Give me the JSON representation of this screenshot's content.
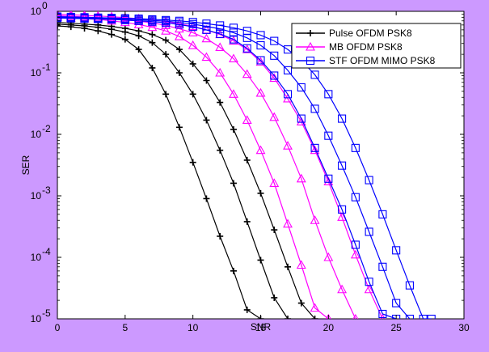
{
  "chart_data": {
    "type": "line",
    "xlabel": "SNR",
    "ylabel": "SER",
    "xlim": [
      0,
      30
    ],
    "ylim": [
      1e-05,
      1
    ],
    "yscale": "log",
    "grid": false,
    "legend_position": "top-right",
    "x_ticks": [
      0,
      5,
      10,
      15,
      20,
      25,
      30
    ],
    "y_ticks": [
      {
        "value": 1e-05,
        "base": "10",
        "exp": "-5"
      },
      {
        "value": 0.0001,
        "base": "10",
        "exp": "-4"
      },
      {
        "value": 0.001,
        "base": "10",
        "exp": "-3"
      },
      {
        "value": 0.01,
        "base": "10",
        "exp": "-2"
      },
      {
        "value": 0.1,
        "base": "10",
        "exp": "-1"
      },
      {
        "value": 1,
        "base": "10",
        "exp": "0"
      }
    ],
    "legend": [
      {
        "label": "Pulse OFDM PSK8",
        "color": "#000000",
        "marker": "plus"
      },
      {
        "label": "MB OFDM PSK8",
        "color": "#ff00ff",
        "marker": "triangle"
      },
      {
        "label": "STF OFDM MIMO PSK8",
        "color": "#0000ff",
        "marker": "square"
      }
    ],
    "series": [
      {
        "color": "#000000",
        "marker": "plus",
        "x": [
          0,
          1,
          2,
          3,
          4,
          5,
          6,
          7,
          8,
          9,
          10,
          11,
          12,
          13,
          14,
          15
        ],
        "y": [
          0.58,
          0.56,
          0.53,
          0.48,
          0.42,
          0.35,
          0.24,
          0.12,
          0.045,
          0.013,
          0.0035,
          0.0009,
          0.00022,
          6e-05,
          1.4e-05,
          1e-05
        ]
      },
      {
        "color": "#000000",
        "marker": "plus",
        "x": [
          0,
          1,
          2,
          3,
          4,
          5,
          6,
          7,
          8,
          9,
          10,
          11,
          12,
          13,
          14,
          15,
          16,
          17
        ],
        "y": [
          0.62,
          0.6,
          0.58,
          0.55,
          0.51,
          0.46,
          0.4,
          0.31,
          0.2,
          0.1,
          0.045,
          0.017,
          0.0055,
          0.0016,
          0.00038,
          9e-05,
          2.2e-05,
          1e-05
        ]
      },
      {
        "color": "#000000",
        "marker": "plus",
        "x": [
          0,
          1,
          2,
          3,
          4,
          5,
          6,
          7,
          8,
          9,
          10,
          11,
          12,
          13,
          14,
          15,
          16,
          17,
          18,
          19
        ],
        "y": [
          0.66,
          0.64,
          0.62,
          0.6,
          0.57,
          0.53,
          0.48,
          0.42,
          0.34,
          0.24,
          0.14,
          0.075,
          0.033,
          0.012,
          0.0038,
          0.0011,
          0.00028,
          7e-05,
          1.8e-05,
          1e-05
        ]
      },
      {
        "color": "#ff00ff",
        "marker": "triangle",
        "x": [
          0,
          1,
          2,
          3,
          4,
          5,
          6,
          7,
          8,
          9,
          10,
          11,
          12,
          13,
          14,
          15,
          16,
          17,
          18,
          19,
          20
        ],
        "y": [
          0.8,
          0.78,
          0.76,
          0.74,
          0.7,
          0.66,
          0.61,
          0.55,
          0.48,
          0.39,
          0.28,
          0.18,
          0.1,
          0.045,
          0.017,
          0.0055,
          0.0016,
          0.00035,
          7.5e-05,
          1.5e-05,
          1e-05
        ]
      },
      {
        "color": "#ff00ff",
        "marker": "triangle",
        "x": [
          0,
          1,
          2,
          3,
          4,
          5,
          6,
          7,
          8,
          9,
          10,
          11,
          12,
          13,
          14,
          15,
          16,
          17,
          18,
          19,
          20,
          21,
          22
        ],
        "y": [
          0.85,
          0.83,
          0.81,
          0.79,
          0.76,
          0.73,
          0.69,
          0.65,
          0.59,
          0.52,
          0.45,
          0.36,
          0.26,
          0.17,
          0.095,
          0.047,
          0.019,
          0.0065,
          0.0019,
          0.0004,
          0.0001,
          3e-05,
          1e-05
        ]
      },
      {
        "color": "#ff00ff",
        "marker": "triangle",
        "x": [
          0,
          1,
          2,
          3,
          4,
          5,
          6,
          7,
          8,
          9,
          10,
          11,
          12,
          13,
          14,
          15,
          16,
          17,
          18,
          19,
          20,
          21,
          22,
          23,
          24
        ],
        "y": [
          0.9,
          0.88,
          0.86,
          0.84,
          0.82,
          0.79,
          0.76,
          0.72,
          0.68,
          0.63,
          0.57,
          0.5,
          0.42,
          0.33,
          0.24,
          0.15,
          0.082,
          0.038,
          0.016,
          0.0055,
          0.0017,
          0.00045,
          0.00011,
          3e-05,
          1e-05
        ]
      },
      {
        "color": "#0000ff",
        "marker": "square",
        "x": [
          0,
          1,
          2,
          3,
          4,
          5,
          6,
          7,
          8,
          9,
          10,
          11,
          12,
          13,
          14,
          15,
          16,
          17,
          18,
          19,
          20,
          21,
          22,
          23,
          24,
          25
        ],
        "y": [
          0.78,
          0.77,
          0.76,
          0.75,
          0.74,
          0.72,
          0.7,
          0.68,
          0.65,
          0.61,
          0.56,
          0.5,
          0.43,
          0.35,
          0.25,
          0.16,
          0.09,
          0.045,
          0.018,
          0.006,
          0.0019,
          0.0006,
          0.00016,
          4e-05,
          1.2e-05,
          1e-05
        ]
      },
      {
        "color": "#0000ff",
        "marker": "square",
        "x": [
          0,
          1,
          2,
          3,
          4,
          5,
          6,
          7,
          8,
          9,
          10,
          11,
          12,
          13,
          14,
          15,
          16,
          17,
          18,
          19,
          20,
          21,
          22,
          23,
          24,
          25,
          26
        ],
        "y": [
          0.8,
          0.79,
          0.78,
          0.77,
          0.76,
          0.75,
          0.73,
          0.71,
          0.69,
          0.66,
          0.62,
          0.57,
          0.52,
          0.45,
          0.37,
          0.28,
          0.19,
          0.11,
          0.058,
          0.026,
          0.0095,
          0.0031,
          0.00095,
          0.00026,
          7e-05,
          1.8e-05,
          1e-05
        ]
      },
      {
        "color": "#0000ff",
        "marker": "square",
        "x": [
          0,
          1,
          2,
          3,
          4,
          5,
          6,
          7,
          8,
          9,
          10,
          11,
          12,
          13,
          14,
          15,
          16,
          17,
          18,
          19,
          20,
          21,
          22,
          23,
          24,
          25,
          26,
          27,
          27.6
        ],
        "y": [
          0.82,
          0.81,
          0.8,
          0.79,
          0.78,
          0.77,
          0.76,
          0.74,
          0.72,
          0.7,
          0.67,
          0.63,
          0.59,
          0.54,
          0.48,
          0.41,
          0.33,
          0.24,
          0.16,
          0.093,
          0.045,
          0.018,
          0.006,
          0.0018,
          0.0005,
          0.00013,
          3.5e-05,
          1e-05,
          1e-05
        ]
      }
    ]
  }
}
